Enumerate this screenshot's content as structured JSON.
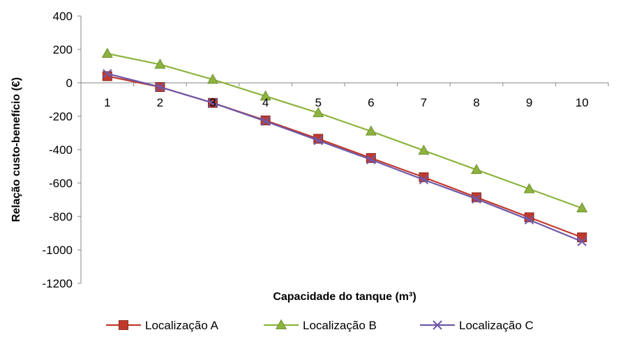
{
  "chart_data": {
    "type": "line",
    "title": "",
    "xlabel": "Capacidade do tanque (m³)",
    "ylabel": "Relação custo-benefício (€)",
    "categories": [
      "1",
      "2",
      "3",
      "4",
      "5",
      "6",
      "7",
      "8",
      "9",
      "10"
    ],
    "ylim": [
      -1200,
      400
    ],
    "yticks": [
      "-1200",
      "-1000",
      "-800",
      "-600",
      "-400",
      "-200",
      "0",
      "200",
      "400"
    ],
    "grid": false,
    "legend_position": "bottom",
    "series": [
      {
        "name": "Localização A",
        "color": "#c0392b",
        "marker": "square",
        "values": [
          40,
          -25,
          -120,
          -225,
          -335,
          -450,
          -565,
          -685,
          -805,
          -925
        ]
      },
      {
        "name": "Localização B",
        "color": "#8db33e",
        "marker": "triangle",
        "values": [
          175,
          110,
          20,
          -80,
          -180,
          -290,
          -405,
          -520,
          -635,
          -750
        ]
      },
      {
        "name": "Localização C",
        "color": "#6f58a8",
        "marker": "x",
        "values": [
          55,
          -25,
          -120,
          -230,
          -345,
          -460,
          -580,
          -695,
          -820,
          -950
        ]
      }
    ]
  }
}
